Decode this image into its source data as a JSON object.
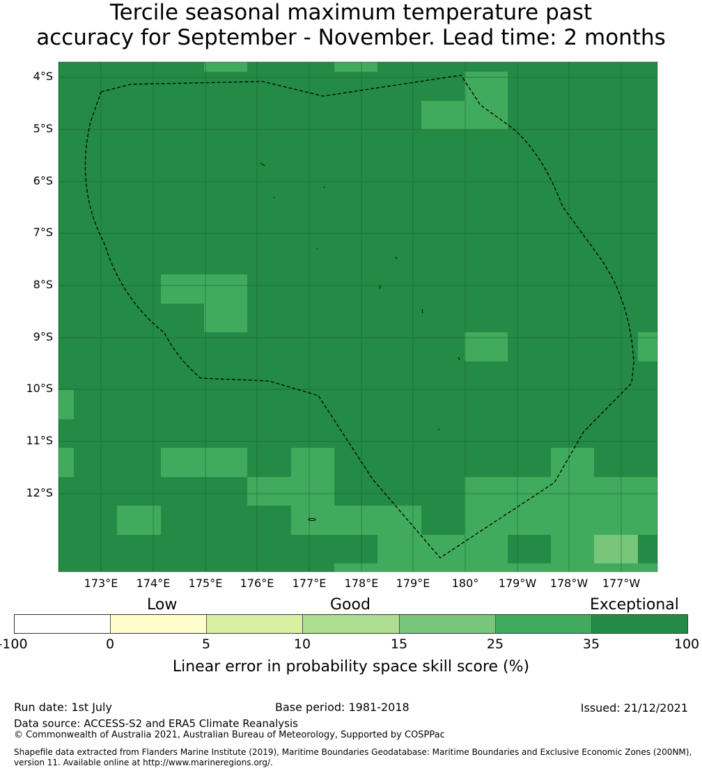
{
  "title": {
    "line1": "Tercile seasonal maximum temperature past",
    "line2": "accuracy for September - November. Lead time: 2 months"
  },
  "map": {
    "lat_labels": [
      "4°S",
      "5°S",
      "6°S",
      "7°S",
      "8°S",
      "9°S",
      "10°S",
      "11°S",
      "12°S"
    ],
    "lon_labels": [
      "173°E",
      "174°E",
      "175°E",
      "176°E",
      "177°E",
      "178°E",
      "179°E",
      "180°",
      "179°W",
      "178°W",
      "177°W"
    ],
    "colors": {
      "exceptional": "#238b45",
      "band_25_35": "#41ab5d",
      "band_15_25": "#78c679",
      "gridline": "#1a5e30",
      "eez_boundary": "#000000"
    },
    "eez_boundary_style": "dashed"
  },
  "legend": {
    "categories": [
      "Low",
      "Good",
      "Exceptional"
    ],
    "ticks": [
      "-100",
      "0",
      "5",
      "10",
      "15",
      "25",
      "35",
      "100"
    ],
    "colors": [
      "#ffffff",
      "#ffffcc",
      "#d9f0a3",
      "#addd8e",
      "#78c679",
      "#41ab5d",
      "#238b45"
    ],
    "label": "Linear error in probability space skill score (%)"
  },
  "footer": {
    "run_date": "Run date: 1st July",
    "base_period": "Base period: 1981-2018",
    "issued": "Issued: 21/12/2021",
    "data_source": "Data source: ACCESS-S2 and ERA5 Climate Reanalysis",
    "copyright": "© Commonwealth of Australia 2021, Australian Bureau of Meteorology, Supported by COSPPac",
    "shapefile": "Shapefile data extracted from Flanders Marine Institute (2019), Maritime Boundaries Geodatabase: Maritime Boundaries and Exclusive Economic Zones (200NM), version 11. Available online at http://www.marineregions.org/."
  }
}
